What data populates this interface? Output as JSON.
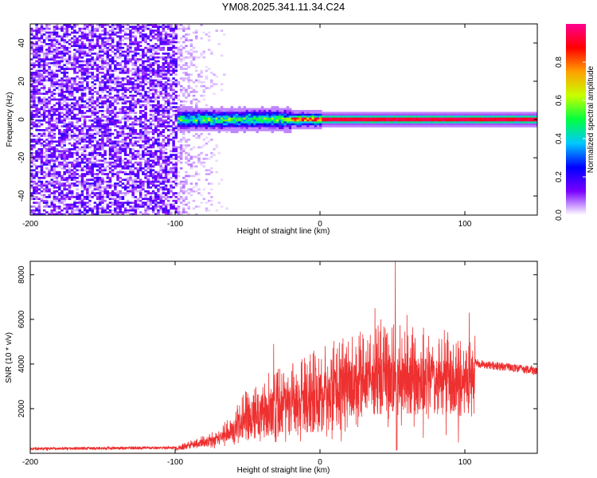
{
  "title": "YM08.2025.341.11.34.C24",
  "chart_data": [
    {
      "type": "heatmap",
      "name": "spectrogram",
      "xlabel": "Height of straight line (km)",
      "ylabel": "Frequency (Hz)",
      "xlim": [
        -200,
        150
      ],
      "ylim": [
        -50,
        50
      ],
      "xticks": [
        -200,
        -100,
        0,
        100
      ],
      "yticks": [
        -40,
        -20,
        0,
        20,
        40
      ],
      "noise_region_x": [
        -200,
        -100
      ],
      "fading_noise_x": [
        -100,
        -65
      ],
      "signal_onset_x": -100,
      "signal_frequency_hz": 0,
      "colorbar": {
        "label": "Normalized spectral amplitude",
        "range": [
          0,
          1
        ],
        "ticks": [
          0.0,
          0.2,
          0.4,
          0.6,
          0.8
        ],
        "tick_labels": [
          "0.0",
          "0.2",
          "0.4",
          "0.6",
          "0.8"
        ],
        "colors": [
          "#ffffff",
          "#7a00ff",
          "#0000ff",
          "#00c8ff",
          "#00ff40",
          "#c8ff00",
          "#ffa000",
          "#ff0000",
          "#ff0090"
        ]
      }
    },
    {
      "type": "line",
      "name": "snr",
      "xlabel": "Height of straight line (km)",
      "ylabel": "SNR (10 * v/v)",
      "xlim": [
        -200,
        150
      ],
      "ylim": [
        0,
        8600
      ],
      "xticks": [
        -200,
        -100,
        0,
        100
      ],
      "yticks": [
        2000,
        4000,
        6000,
        8000
      ],
      "color": "#ee3030",
      "envelope": [
        {
          "x": -200,
          "y": 200
        },
        {
          "x": -100,
          "y": 250
        },
        {
          "x": -85,
          "y": 500
        },
        {
          "x": -70,
          "y": 800
        },
        {
          "x": -60,
          "y": 1400
        },
        {
          "x": -50,
          "y": 2200
        },
        {
          "x": -40,
          "y": 2600
        },
        {
          "x": -30,
          "y": 2800
        },
        {
          "x": -20,
          "y": 3000
        },
        {
          "x": -10,
          "y": 3200
        },
        {
          "x": 0,
          "y": 3600
        },
        {
          "x": 20,
          "y": 3900
        },
        {
          "x": 40,
          "y": 4300
        },
        {
          "x": 60,
          "y": 4300
        },
        {
          "x": 80,
          "y": 4200
        },
        {
          "x": 100,
          "y": 4000
        },
        {
          "x": 107,
          "y": 4100
        },
        {
          "x": 110,
          "y": 4000
        },
        {
          "x": 150,
          "y": 3700
        }
      ],
      "peaks": [
        {
          "x": -32,
          "y": 4900
        },
        {
          "x": -25,
          "y": 3600
        },
        {
          "x": 38,
          "y": 6500
        },
        {
          "x": 42,
          "y": 6000
        },
        {
          "x": 52,
          "y": 8600
        },
        {
          "x": 60,
          "y": 6200
        },
        {
          "x": 103,
          "y": 6300
        }
      ]
    }
  ]
}
